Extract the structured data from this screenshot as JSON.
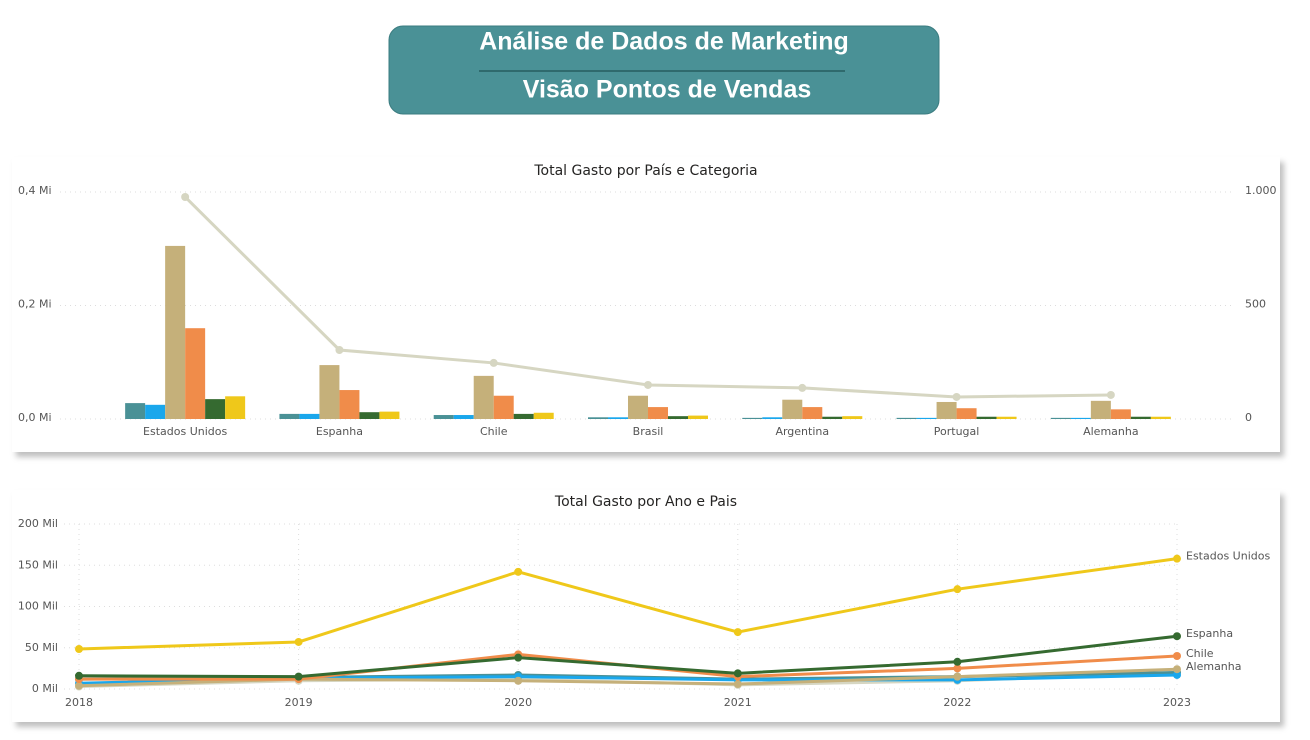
{
  "header": {
    "title": "Análise de Dados de Marketing",
    "subtitle": "Visão Pontos de Vendas"
  },
  "chart_data": [
    {
      "type": "bar",
      "title": "Total Gasto por País e Categoria",
      "categories": [
        "Estados Unidos",
        "Espanha",
        "Chile",
        "Brasil",
        "Argentina",
        "Portugal",
        "Alemanha"
      ],
      "series": [
        {
          "color": "#4a9196",
          "values": [
            0.028,
            0.009,
            0.007,
            0.003,
            0.002,
            0.002,
            0.002
          ]
        },
        {
          "color": "#1aa7ec",
          "values": [
            0.025,
            0.009,
            0.007,
            0.003,
            0.003,
            0.002,
            0.002
          ]
        },
        {
          "color": "#c5b07a",
          "values": [
            0.305,
            0.095,
            0.076,
            0.041,
            0.034,
            0.03,
            0.032
          ]
        },
        {
          "color": "#f08c4a",
          "values": [
            0.16,
            0.051,
            0.041,
            0.021,
            0.021,
            0.019,
            0.017
          ]
        },
        {
          "color": "#356a30",
          "values": [
            0.035,
            0.012,
            0.009,
            0.005,
            0.004,
            0.004,
            0.004
          ]
        },
        {
          "color": "#efc81a",
          "values": [
            0.04,
            0.013,
            0.011,
            0.006,
            0.005,
            0.004,
            0.004
          ]
        },
        {
          "type": "line",
          "axis": "y2",
          "color": "#d6d6c2",
          "values": [
            978,
            304,
            247,
            150,
            137,
            97,
            106
          ]
        }
      ],
      "ylim": [
        0,
        0.4
      ],
      "yticks": [
        {
          "value": 0,
          "label": "0,0 Mi"
        },
        {
          "value": 0.2,
          "label": "0,2 Mi"
        },
        {
          "value": 0.4,
          "label": "0,4 Mi"
        }
      ],
      "y2lim": [
        0,
        1000
      ],
      "y2ticks": [
        0,
        500,
        {
          "value": 1000,
          "label": "1.000"
        }
      ],
      "grid": true
    },
    {
      "type": "line",
      "title": "Total Gasto por Ano e Pais",
      "categories": [
        "2018",
        "2019",
        "2020",
        "2021",
        "2022",
        "2023"
      ],
      "series": [
        {
          "color": "#d6d6c2",
          "values": [
            3,
            10,
            12,
            5,
            10,
            20
          ]
        },
        {
          "color": "#4a9196",
          "values": [
            12,
            14,
            17,
            12,
            15,
            20
          ]
        },
        {
          "color": "#1aa7ec",
          "values": [
            7,
            13,
            15,
            11,
            11,
            17
          ]
        },
        {
          "name": "Alemanha",
          "color": "#c5b07a",
          "values": [
            4,
            12,
            10,
            6,
            15,
            24
          ]
        },
        {
          "name": "Chile",
          "color": "#f08c4a",
          "values": [
            12,
            12,
            42,
            15,
            25,
            40
          ]
        },
        {
          "name": "Espanha",
          "color": "#356a30",
          "values": [
            16,
            15,
            38,
            19,
            33,
            64
          ]
        },
        {
          "name": "Estados Unidos",
          "color": "#efc81a",
          "values": [
            48.5,
            57,
            142,
            69,
            121,
            158
          ]
        }
      ],
      "ylim": [
        0,
        200
      ],
      "yticks": [
        {
          "value": 0,
          "label": "0 Mil"
        },
        {
          "value": 50,
          "label": "50 Mil"
        },
        {
          "value": 100,
          "label": "100 Mil"
        },
        {
          "value": 150,
          "label": "150 Mil"
        },
        {
          "value": 200,
          "label": "200 Mil"
        }
      ],
      "grid": true
    }
  ]
}
